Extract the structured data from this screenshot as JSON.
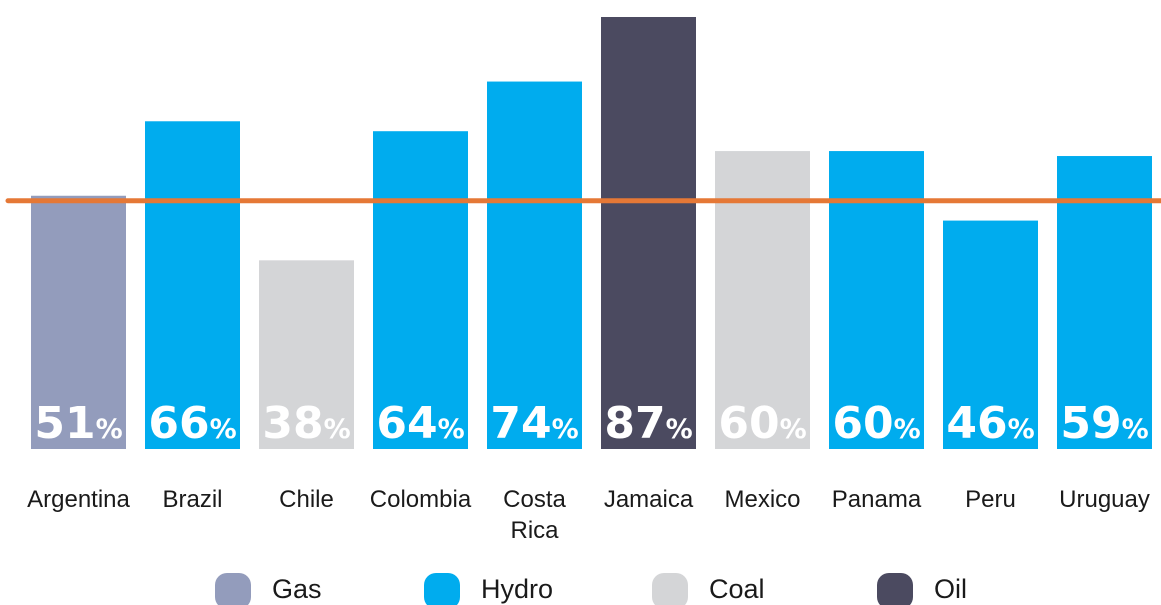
{
  "chart_data": {
    "type": "bar",
    "categories": [
      "Argentina",
      "Brazil",
      "Chile",
      "Colombia",
      "Costa Rica",
      "Jamaica",
      "Mexico",
      "Panama",
      "Peru",
      "Uruguay"
    ],
    "category_label_lines": [
      [
        "Argentina"
      ],
      [
        "Brazil"
      ],
      [
        "Chile"
      ],
      [
        "Colombia"
      ],
      [
        "Costa",
        "Rica"
      ],
      [
        "Jamaica"
      ],
      [
        "Mexico"
      ],
      [
        "Panama"
      ],
      [
        "Peru"
      ],
      [
        "Uruguay"
      ]
    ],
    "values": [
      51,
      66,
      38,
      64,
      74,
      87,
      60,
      60,
      46,
      59
    ],
    "value_labels": [
      "51",
      "66",
      "38",
      "64",
      "74",
      "87",
      "60",
      "60",
      "46",
      "59"
    ],
    "value_suffix": "%",
    "bar_fuel": [
      "Gas",
      "Hydro",
      "Coal",
      "Hydro",
      "Hydro",
      "Oil",
      "Coal",
      "Hydro",
      "Hydro",
      "Hydro"
    ],
    "reference_line": {
      "value": 50,
      "color": "#e57836"
    },
    "ylim": [
      0,
      87
    ],
    "grid": false,
    "legend_placement": "bottom",
    "legend": [
      {
        "label": "Gas",
        "color": "#939cbc"
      },
      {
        "label": "Hydro",
        "color": "#00acee"
      },
      {
        "label": "Coal",
        "color": "#d4d5d7"
      },
      {
        "label": "Oil",
        "color": "#4b4a60"
      }
    ],
    "title": "",
    "xlabel": "",
    "ylabel": ""
  }
}
